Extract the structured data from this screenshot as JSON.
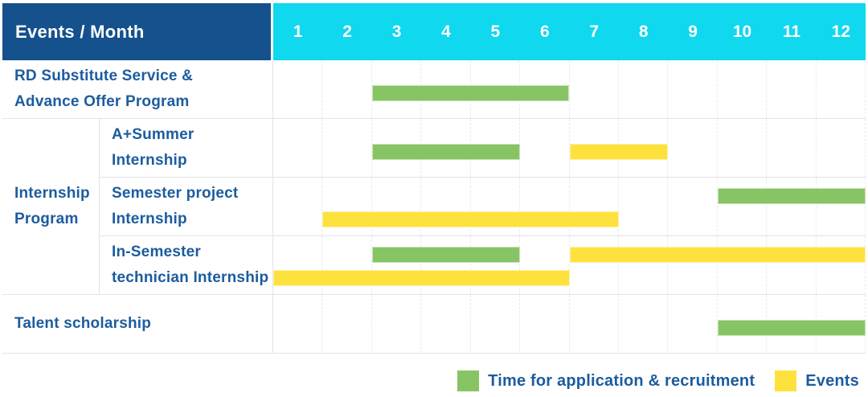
{
  "header": {
    "label": "Events / Month",
    "months": [
      "1",
      "2",
      "3",
      "4",
      "5",
      "6",
      "7",
      "8",
      "9",
      "10",
      "11",
      "12"
    ]
  },
  "groups": {
    "internship": "Internship\nProgram"
  },
  "chart_data": {
    "type": "bar",
    "variant": "gantt-timeline",
    "x_axis": {
      "label": "Month",
      "ticks": [
        1,
        2,
        3,
        4,
        5,
        6,
        7,
        8,
        9,
        10,
        11,
        12
      ],
      "range": [
        1,
        12
      ]
    },
    "legend_entries": [
      "Time for application & recruitment",
      "Events"
    ],
    "rows": [
      {
        "label": "RD Substitute Service &\nAdvance Offer Program",
        "group": null,
        "spans": [
          {
            "kind": "application",
            "months": [
              3,
              6
            ],
            "lane": "center"
          }
        ]
      },
      {
        "label": "A+Summer\nInternship",
        "group": "Internship Program",
        "spans": [
          {
            "kind": "application",
            "months": [
              3,
              5
            ],
            "lane": "center"
          },
          {
            "kind": "event",
            "months": [
              7,
              8
            ],
            "lane": "center"
          }
        ]
      },
      {
        "label": "Semester project\nInternship",
        "group": "Internship Program",
        "spans": [
          {
            "kind": "application",
            "months": [
              10,
              12
            ],
            "lane": "upper"
          },
          {
            "kind": "event",
            "months": [
              2,
              7
            ],
            "lane": "lower"
          }
        ]
      },
      {
        "label": "In-Semester\ntechnician Internship",
        "group": "Internship Program",
        "spans": [
          {
            "kind": "application",
            "months": [
              3,
              5
            ],
            "lane": "upper"
          },
          {
            "kind": "event",
            "months": [
              7,
              12
            ],
            "lane": "upper"
          },
          {
            "kind": "event",
            "months": [
              1,
              6
            ],
            "lane": "lower"
          }
        ]
      },
      {
        "label": "Talent scholarship",
        "group": null,
        "spans": [
          {
            "kind": "application",
            "months": [
              10,
              12
            ],
            "lane": "center"
          }
        ]
      }
    ]
  },
  "legend": {
    "items": [
      {
        "kind": "application",
        "label": "Time for application & recruitment"
      },
      {
        "kind": "event",
        "label": "Events"
      }
    ]
  },
  "colors": {
    "header_bg": "#15518c",
    "months_bg": "#0fd8ef",
    "application_green": "#87c464",
    "event_yellow": "#fde23e",
    "label_text": "#1c5c9e",
    "grid_line": "#e4e4ea"
  }
}
